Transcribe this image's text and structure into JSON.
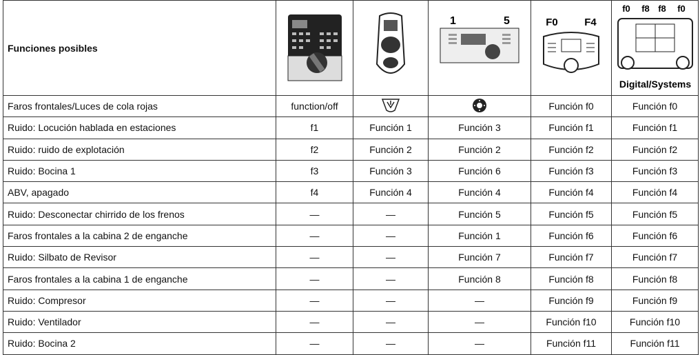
{
  "header": {
    "title": "Funciones posibles",
    "labels": {
      "col3_left": "1",
      "col3_right": "5",
      "col4_left": "F0",
      "col4_right": "F4",
      "col5_top": [
        "f0",
        "f8",
        "f8",
        "f0"
      ],
      "col5_bottom": "Digital/Systems"
    }
  },
  "table": {
    "rows": [
      [
        "Faros frontales/Luces de cola rojas",
        "function/off",
        null,
        null,
        "Función f0",
        "Función f0"
      ],
      [
        "Ruido: Locución hablada en estaciones",
        "f1",
        "Función 1",
        "Función 3",
        "Función f1",
        "Función f1"
      ],
      [
        "Ruido: ruido de explotación",
        "f2",
        "Función 2",
        "Función 2",
        "Función f2",
        "Función f2"
      ],
      [
        "Ruido: Bocina 1",
        "f3",
        "Función 3",
        "Función 6",
        "Función f3",
        "Función f3"
      ],
      [
        "ABV, apagado",
        "f4",
        "Función 4",
        "Función 4",
        "Función f4",
        "Función f4"
      ],
      [
        "Ruido: Desconectar chirrido de los frenos",
        "—",
        "—",
        "Función 5",
        "Función f5",
        "Función f5"
      ],
      [
        "Faros frontales a la cabina 2 de enganche",
        "—",
        "—",
        "Función 1",
        "Función f6",
        "Función f6"
      ],
      [
        "Ruido: Silbato de Revisor",
        "—",
        "—",
        "Función 7",
        "Función f7",
        "Función f7"
      ],
      [
        "Faros frontales a la cabina 1 de enganche",
        "—",
        "—",
        "Función 8",
        "Función f8",
        "Función f8"
      ],
      [
        "Ruido: Compresor",
        "—",
        "—",
        "—",
        "Función f9",
        "Función f9"
      ],
      [
        "Ruido: Ventilador",
        "—",
        "—",
        "—",
        "Función f10",
        "Función f10"
      ],
      [
        "Ruido: Bocina 2",
        "—",
        "—",
        "—",
        "Función f11",
        "Función f11"
      ]
    ]
  }
}
